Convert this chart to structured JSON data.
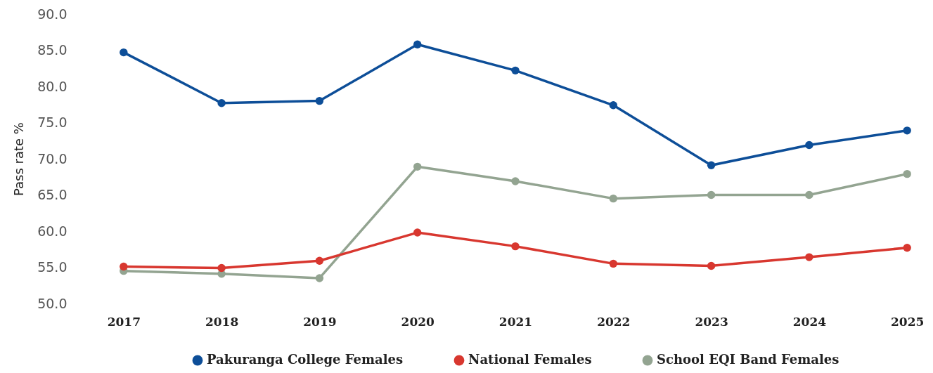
{
  "chart_data": {
    "type": "line",
    "ylabel": "Pass rate %",
    "categories": [
      "2017",
      "2018",
      "2019",
      "2020",
      "2021",
      "2022",
      "2023",
      "2024",
      "2025"
    ],
    "series": [
      {
        "name": "Pakuranga College Females",
        "color": "#0d4e98",
        "values": [
          84.7,
          77.7,
          78.0,
          85.8,
          82.2,
          77.4,
          69.1,
          71.9,
          73.9
        ]
      },
      {
        "name": "National Females",
        "color": "#d8372f",
        "values": [
          55.1,
          54.9,
          55.9,
          59.8,
          57.9,
          55.5,
          55.2,
          56.4,
          57.7
        ]
      },
      {
        "name": "School EQI Band Females",
        "color": "#93a491",
        "values": [
          54.5,
          54.1,
          53.5,
          68.9,
          66.9,
          64.5,
          65.0,
          65.0,
          67.9
        ]
      }
    ],
    "ylim": [
      50,
      90
    ],
    "yticks": [
      {
        "value": 50,
        "label": "50.0"
      },
      {
        "value": 55,
        "label": "55.0"
      },
      {
        "value": 60,
        "label": "60.0"
      },
      {
        "value": 65,
        "label": "65.0"
      },
      {
        "value": 70,
        "label": "70.0"
      },
      {
        "value": 75,
        "label": "75.0"
      },
      {
        "value": 80,
        "label": "80.0"
      },
      {
        "value": 85,
        "label": "85.0"
      },
      {
        "value": 90,
        "label": "90.0"
      }
    ],
    "legend": "bottom",
    "marker": "circle",
    "line_style": "solid"
  }
}
